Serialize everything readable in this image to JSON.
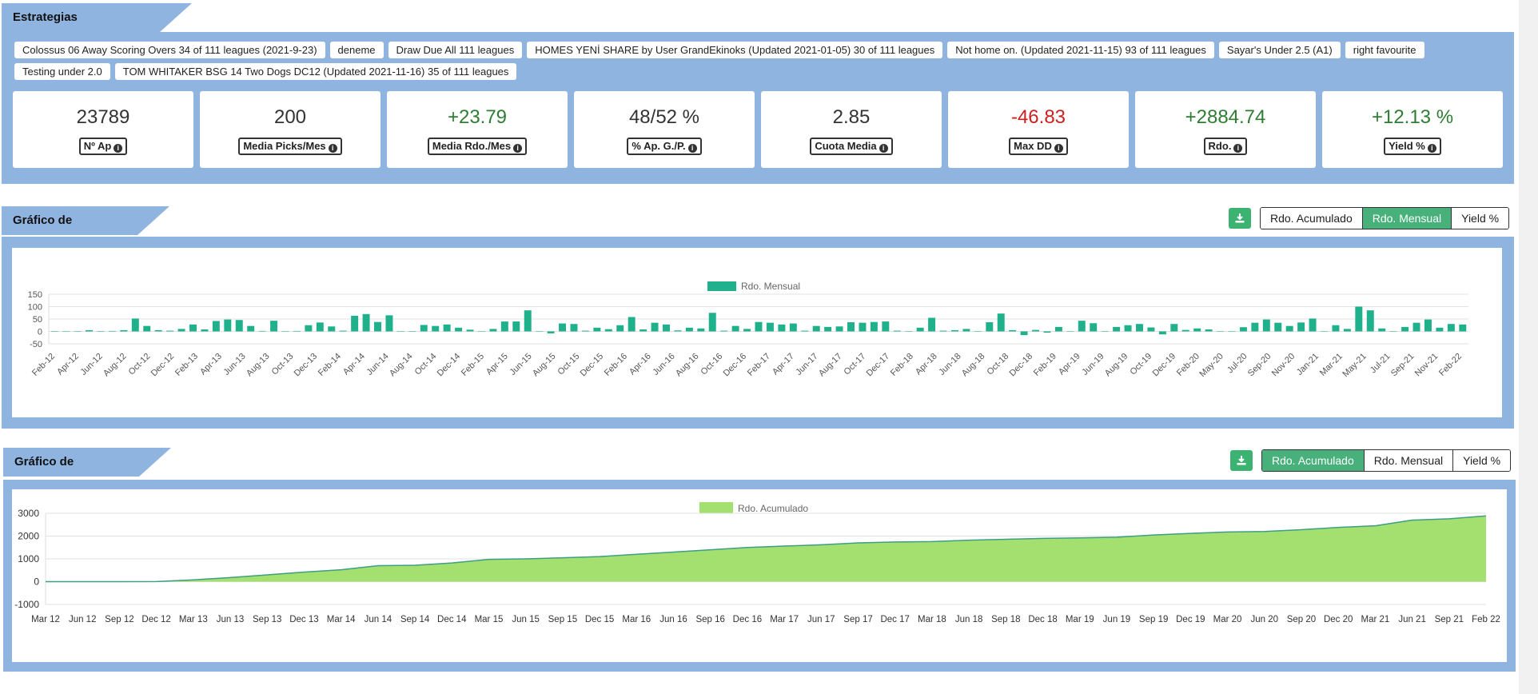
{
  "strategies": {
    "title": "Estrategias seleccionadas:",
    "chips": [
      "Colossus 06 Away Scoring Overs 34 of 111 leagues (2021-9-23)",
      "deneme",
      "Draw Due All 111 leagues",
      "HOMES YENİ SHARE by User GrandEkinoks (Updated 2021-01-05) 30 of 111 leagues",
      "Not home on. (Updated 2021-11-15) 93 of 111 leagues",
      "Sayar's Under 2.5 (A1)",
      "right favourite",
      "Testing under 2.0",
      "TOM WHITAKER BSG 14 Two Dogs DC12 (Updated 2021-11-16) 35 of 111 leagues"
    ]
  },
  "stats": [
    {
      "value": "23789",
      "label": "Nº Ap",
      "color": "#333333"
    },
    {
      "value": "200",
      "label": "Media Picks/Mes",
      "color": "#333333"
    },
    {
      "value": "+23.79",
      "label": "Media Rdo./Mes",
      "color": "#2e7d32"
    },
    {
      "value": "48/52 %",
      "label": "% Ap. G./P.",
      "color": "#333333"
    },
    {
      "value": "2.85",
      "label": "Cuota Media",
      "color": "#333333"
    },
    {
      "value": "-46.83",
      "label": "Max DD",
      "color": "#cc1f1f"
    },
    {
      "value": "+2884.74",
      "label": "Rdo.",
      "color": "#2e7d32"
    },
    {
      "value": "+12.13 %",
      "label": "Yield %",
      "color": "#2e7d32"
    }
  ],
  "chart_section_1": {
    "title": "Gráfico de Resultados",
    "buttons": [
      "Rdo. Acumulado",
      "Rdo. Mensual",
      "Yield %"
    ],
    "active": "Rdo. Mensual"
  },
  "chart_section_2": {
    "title": "Gráfico de Resultados",
    "buttons": [
      "Rdo. Acumulado",
      "Rdo. Mensual",
      "Yield %"
    ],
    "active": "Rdo. Acumulado"
  },
  "colors": {
    "panel": "#8fb4e0",
    "bar": "#1fb08c",
    "area_fill": "#a3e06f",
    "area_line": "#3d9e84",
    "active_button": "#48b07a"
  },
  "chart_data": [
    {
      "type": "bar",
      "legend": "Rdo. Mensual",
      "legend_position": "top",
      "ylim": [
        -50,
        150
      ],
      "yticks": [
        150,
        100,
        50,
        0,
        -50
      ],
      "grid": true,
      "x_tick_labels": [
        "Feb-12",
        "Apr-12",
        "Jun-12",
        "Aug-12",
        "Oct-12",
        "Dec-12",
        "Feb-13",
        "Apr-13",
        "Jun-13",
        "Aug-13",
        "Oct-13",
        "Dec-13",
        "Feb-14",
        "Apr-14",
        "Jun-14",
        "Aug-14",
        "Oct-14",
        "Dec-14",
        "Feb-15",
        "Apr-15",
        "Jun-15",
        "Aug-15",
        "Oct-15",
        "Dec-15",
        "Feb-16",
        "Apr-16",
        "Jun-16",
        "Aug-16",
        "Oct-16",
        "Dec-16",
        "Feb-17",
        "Apr-17",
        "Jun-17",
        "Aug-17",
        "Oct-17",
        "Dec-17",
        "Feb-18",
        "Apr-18",
        "Jun-18",
        "Aug-18",
        "Oct-18",
        "Dec-18",
        "Feb-19",
        "Apr-19",
        "Jun-19",
        "Aug-19",
        "Oct-19",
        "Dec-19",
        "Feb-20",
        "May-20",
        "Jul-20",
        "Sep-20",
        "Nov-20",
        "Jan-21",
        "Mar-21",
        "May-21",
        "Jul-21",
        "Sep-21",
        "Nov-21",
        "Feb-22"
      ],
      "values": [
        0,
        0,
        0,
        5,
        0,
        2,
        5,
        52,
        22,
        5,
        3,
        10,
        28,
        8,
        42,
        48,
        46,
        22,
        2,
        43,
        0,
        2,
        25,
        36,
        20,
        3,
        63,
        70,
        38,
        65,
        1,
        0,
        26,
        22,
        28,
        15,
        7,
        0,
        10,
        40,
        40,
        85,
        0,
        -8,
        32,
        30,
        3,
        15,
        9,
        25,
        58,
        8,
        35,
        28,
        4,
        15,
        12,
        75,
        3,
        22,
        10,
        38,
        35,
        28,
        32,
        3,
        22,
        18,
        20,
        37,
        35,
        38,
        40,
        3,
        0,
        15,
        55,
        3,
        5,
        10,
        0,
        37,
        72,
        5,
        -15,
        6,
        -5,
        18,
        0,
        43,
        33,
        0,
        18,
        25,
        30,
        16,
        -12,
        30,
        6,
        12,
        8,
        0,
        0,
        17,
        35,
        48,
        35,
        22,
        36,
        52,
        0,
        25,
        10,
        100,
        85,
        12,
        0,
        18,
        35,
        48,
        15,
        30,
        28
      ]
    },
    {
      "type": "area",
      "legend": "Rdo. Acumulado",
      "legend_position": "top",
      "ylim": [
        -1000,
        3000
      ],
      "yticks": [
        3000,
        2000,
        1000,
        0,
        -1000
      ],
      "grid": true,
      "x_tick_labels": [
        "Mar 12",
        "Jun 12",
        "Sep 12",
        "Dec 12",
        "Mar 13",
        "Jun 13",
        "Sep 13",
        "Dec 13",
        "Mar 14",
        "Jun 14",
        "Sep 14",
        "Dec 14",
        "Mar 15",
        "Jun 15",
        "Sep 15",
        "Dec 15",
        "Mar 16",
        "Jun 16",
        "Sep 16",
        "Dec 16",
        "Mar 17",
        "Jun 17",
        "Sep 17",
        "Dec 17",
        "Mar 18",
        "Jun 18",
        "Sep 18",
        "Dec 18",
        "Mar 19",
        "Jun 19",
        "Sep 19",
        "Dec 19",
        "Mar 20",
        "Jun 20",
        "Sep 20",
        "Dec 20",
        "Mar 21",
        "Jun 21",
        "Sep 21",
        "Feb 22"
      ],
      "values": [
        0,
        0,
        0,
        5,
        80,
        180,
        300,
        420,
        520,
        700,
        720,
        820,
        980,
        1000,
        1050,
        1100,
        1200,
        1300,
        1400,
        1500,
        1560,
        1620,
        1700,
        1740,
        1760,
        1820,
        1860,
        1900,
        1920,
        1950,
        2050,
        2120,
        2180,
        2200,
        2280,
        2380,
        2450,
        2700,
        2760,
        2885
      ]
    }
  ]
}
